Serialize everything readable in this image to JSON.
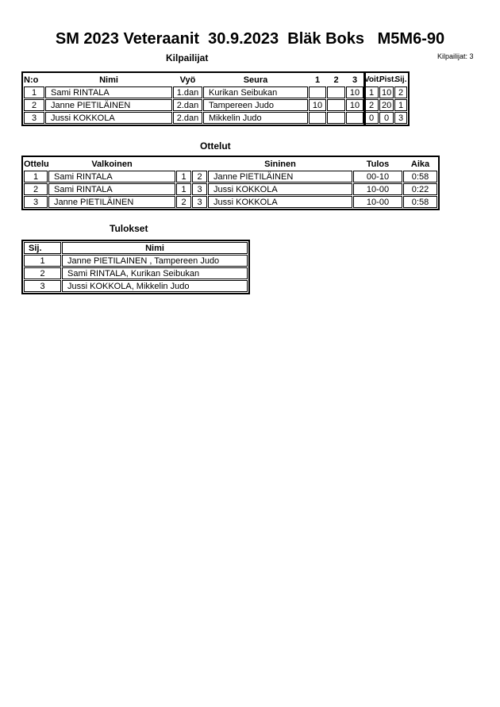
{
  "page": {
    "title": "SM 2023 Veteraanit  30.9.2023  Bläk Boks   M5M6-90",
    "competitors_count": "Kilpailijat: 3"
  },
  "sections": {
    "kilpailijat": {
      "label": "Kilpailijat",
      "headers": [
        "N:o",
        "Nimi",
        "Vyö",
        "Seura",
        "1",
        "2",
        "3",
        "Voit.",
        "Pist.",
        "Sij."
      ],
      "rows": [
        [
          "1",
          "Sami RINTALA",
          "1.dan",
          "Kurikan Seibukan",
          "",
          "",
          "10",
          "1",
          "10",
          "2"
        ],
        [
          "2",
          "Janne PIETILÄINEN",
          "2.dan",
          "Tampereen Judo",
          "10",
          "",
          "10",
          "2",
          "20",
          "1"
        ],
        [
          "3",
          "Jussi KOKKOLA",
          "2.dan",
          "Mikkelin Judo",
          "",
          "",
          "",
          "0",
          "0",
          "3"
        ]
      ]
    },
    "ottelut": {
      "label": "Ottelut",
      "headers": [
        "Ottelu",
        "Valkoinen",
        "",
        "",
        "Sininen",
        "Tulos",
        "Aika"
      ],
      "rows": [
        [
          "1",
          "Sami RINTALA",
          "1",
          "2",
          "Janne PIETILÄINEN",
          "00-10",
          "0:58"
        ],
        [
          "2",
          "Sami RINTALA",
          "1",
          "3",
          "Jussi KOKKOLA",
          "10-00",
          "0:22"
        ],
        [
          "3",
          "Janne PIETILÄINEN",
          "2",
          "3",
          "Jussi KOKKOLA",
          "10-00",
          "0:58"
        ]
      ]
    },
    "tulokset": {
      "label": "Tulokset",
      "headers": [
        "Sij.",
        "Nimi"
      ],
      "rows": [
        [
          "1",
          "Janne PIETILAINEN , Tampereen Judo"
        ],
        [
          "2",
          "Sami RINTALA, Kurikan Seibukan"
        ],
        [
          "3",
          "Jussi KOKKOLA, Mikkelin Judo"
        ]
      ]
    }
  },
  "colors": {
    "text": "#000000",
    "border": "#000000",
    "background": "#ffffff"
  }
}
